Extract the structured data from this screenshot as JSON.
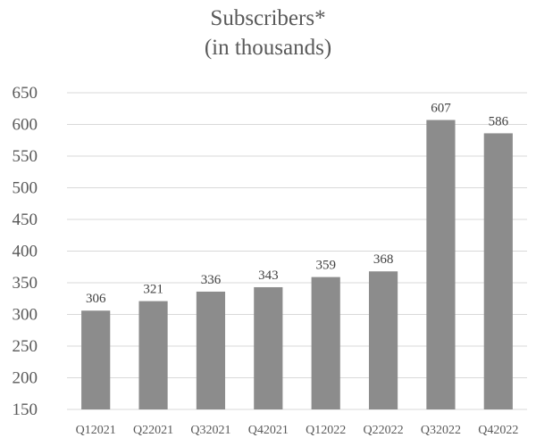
{
  "chart_data": {
    "type": "bar",
    "title": "Subscribers*",
    "subtitle": "(in thousands)",
    "xlabel": "",
    "ylabel": "",
    "categories": [
      "Q12021",
      "Q22021",
      "Q32021",
      "Q42021",
      "Q12022",
      "Q22022",
      "Q32022",
      "Q42022"
    ],
    "values": [
      306,
      321,
      336,
      343,
      359,
      368,
      607,
      586
    ],
    "ylim": [
      150,
      650
    ],
    "yticks": [
      150,
      200,
      250,
      300,
      350,
      400,
      450,
      500,
      550,
      600,
      650
    ],
    "grid": true,
    "legend": "none",
    "colors": {
      "bar": "#8c8c8c",
      "grid": "#d9d9d9",
      "text": "#595959",
      "data_label": "#404040"
    }
  }
}
